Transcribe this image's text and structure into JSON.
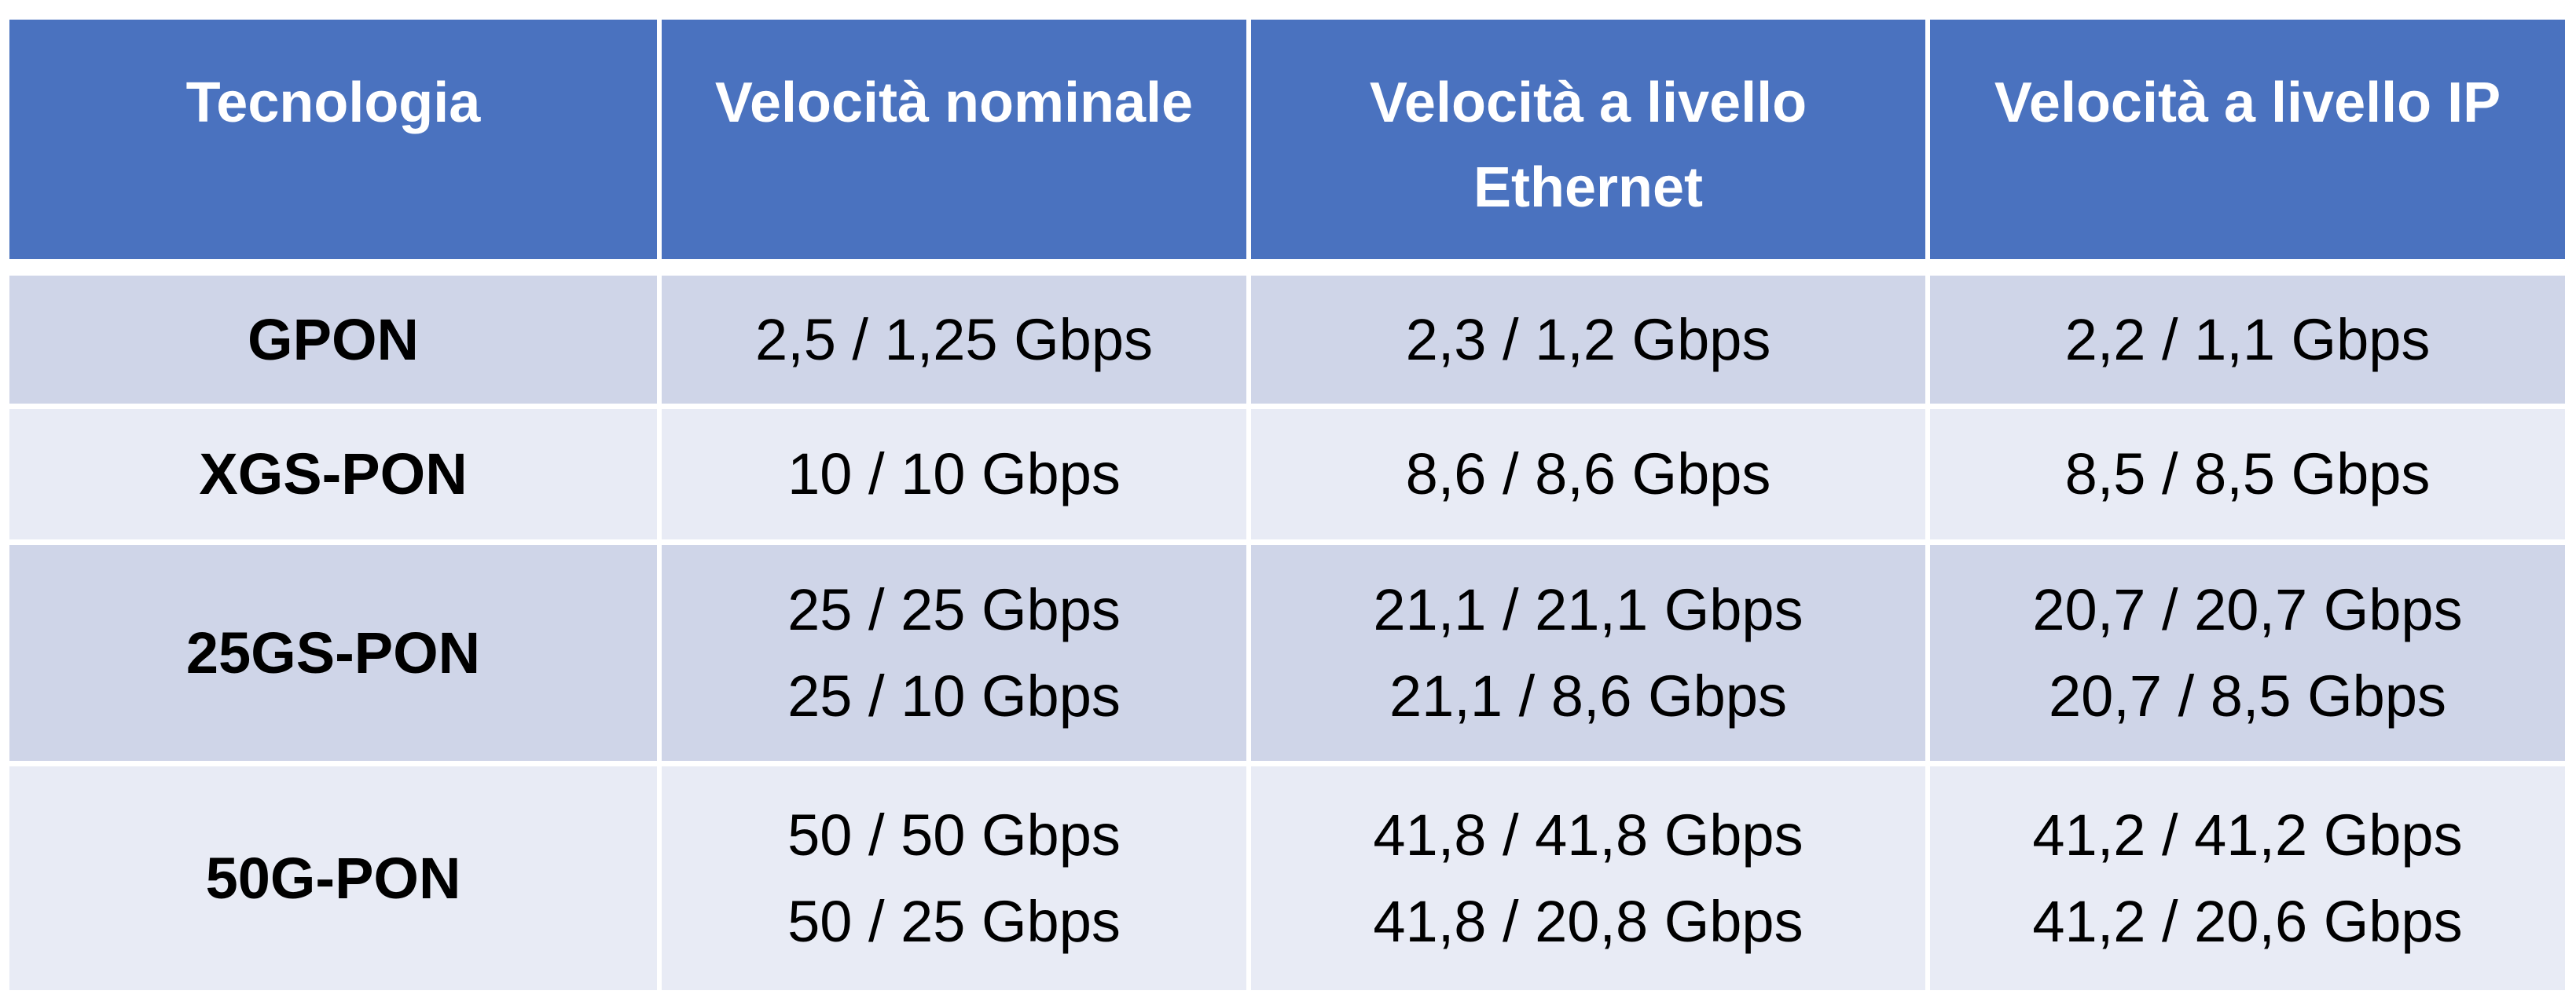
{
  "table": {
    "headers": [
      {
        "lines": [
          "Tecnologia"
        ]
      },
      {
        "lines": [
          "Velocità nominale"
        ]
      },
      {
        "lines": [
          "Velocità a livello",
          "Ethernet"
        ]
      },
      {
        "lines": [
          "Velocità a livello IP"
        ]
      }
    ],
    "rows": [
      {
        "tech": "GPON",
        "nominal": [
          "2,5 / 1,25 Gbps"
        ],
        "ethernet": [
          "2,3 / 1,2 Gbps"
        ],
        "ip": [
          "2,2 / 1,1 Gbps"
        ]
      },
      {
        "tech": "XGS-PON",
        "nominal": [
          "10 / 10 Gbps"
        ],
        "ethernet": [
          "8,6 / 8,6 Gbps"
        ],
        "ip": [
          "8,5 / 8,5 Gbps"
        ]
      },
      {
        "tech": "25GS-PON",
        "nominal": [
          "25 / 25 Gbps",
          "25 / 10 Gbps"
        ],
        "ethernet": [
          "21,1 / 21,1 Gbps",
          "21,1 / 8,6 Gbps"
        ],
        "ip": [
          "20,7 / 20,7 Gbps",
          "20,7 / 8,5 Gbps"
        ]
      },
      {
        "tech": "50G-PON",
        "nominal": [
          "50 / 50 Gbps",
          "50 / 25 Gbps"
        ],
        "ethernet": [
          "41,8 / 41,8 Gbps",
          "41,8 / 20,8 Gbps"
        ],
        "ip": [
          "41,2 / 41,2 Gbps",
          "41,2 / 20,6 Gbps"
        ]
      }
    ]
  }
}
